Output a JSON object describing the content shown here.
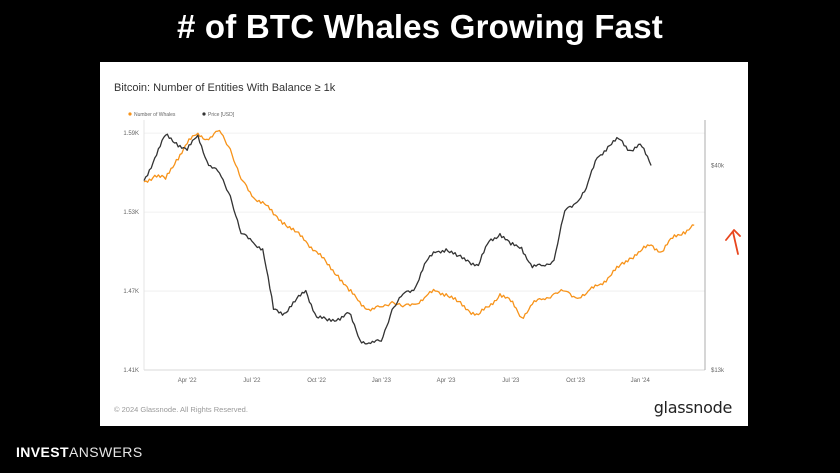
{
  "slide": {
    "title": "# of BTC Whales Growing Fast",
    "footer_brand_part1": "INVEST",
    "footer_brand_part2": "ANSWERS"
  },
  "card": {
    "copyright": "© 2024 Glassnode. All Rights Reserved.",
    "logo_text": "glassnode"
  },
  "colors": {
    "whales": "#f7931a",
    "price": "#333333",
    "annotation_arrow": "#e8461e",
    "background": "#000000"
  },
  "chart_data": {
    "type": "line",
    "title": "Bitcoin: Number of Entities With Balance ≥ 1k",
    "legend": [
      "Number of Whales",
      "Price [USD]"
    ],
    "legend_position": "top-left",
    "x_tick_labels": [
      "Apr '22",
      "Jul '22",
      "Oct '22",
      "Jan '23",
      "Apr '23",
      "Jul '23",
      "Oct '23",
      "Jan '24"
    ],
    "y_left_tick_labels": [
      "1.41K",
      "1.47K",
      "1.53K",
      "1.59K"
    ],
    "y_left_ticks": [
      1410,
      1470,
      1530,
      1590
    ],
    "y_left_range": [
      1410,
      1600
    ],
    "y_right_tick_labels": [
      "$13k",
      "$40k"
    ],
    "y_right_ticks": [
      13000,
      40000
    ],
    "y_right_range": [
      13000,
      46000
    ],
    "right_axis_scale": "linear",
    "grid": true,
    "x_range_months": [
      0,
      26
    ],
    "x_tick_months": [
      2,
      5,
      8,
      11,
      14,
      17,
      20,
      23
    ],
    "series": [
      {
        "name": "Number of Whales",
        "axis": "left",
        "points": [
          [
            0,
            1553
          ],
          [
            0.5,
            1558
          ],
          [
            1,
            1555
          ],
          [
            1.5,
            1570
          ],
          [
            2,
            1582
          ],
          [
            2.5,
            1590
          ],
          [
            3,
            1585
          ],
          [
            3.5,
            1592
          ],
          [
            4,
            1578
          ],
          [
            4.5,
            1555
          ],
          [
            5,
            1542
          ],
          [
            5.5,
            1538
          ],
          [
            6,
            1528
          ],
          [
            6.5,
            1522
          ],
          [
            7,
            1515
          ],
          [
            7.5,
            1508
          ],
          [
            8,
            1500
          ],
          [
            8.5,
            1490
          ],
          [
            9,
            1482
          ],
          [
            9.5,
            1470
          ],
          [
            10,
            1462
          ],
          [
            10.5,
            1455
          ],
          [
            11,
            1458
          ],
          [
            11.5,
            1462
          ],
          [
            12,
            1458
          ],
          [
            12.5,
            1460
          ],
          [
            13,
            1465
          ],
          [
            13.5,
            1470
          ],
          [
            14,
            1468
          ],
          [
            14.5,
            1462
          ],
          [
            15,
            1456
          ],
          [
            15.5,
            1452
          ],
          [
            16,
            1458
          ],
          [
            16.5,
            1468
          ],
          [
            17,
            1462
          ],
          [
            17.5,
            1450
          ],
          [
            18,
            1460
          ],
          [
            18.5,
            1464
          ],
          [
            19,
            1468
          ],
          [
            19.5,
            1470
          ],
          [
            20,
            1465
          ],
          [
            20.5,
            1468
          ],
          [
            21,
            1474
          ],
          [
            21.5,
            1480
          ],
          [
            22,
            1488
          ],
          [
            22.5,
            1495
          ],
          [
            23,
            1500
          ],
          [
            23.5,
            1505
          ],
          [
            24,
            1500
          ],
          [
            24.5,
            1510
          ],
          [
            25,
            1515
          ],
          [
            25.5,
            1520
          ]
        ]
      },
      {
        "name": "Price [USD]",
        "axis": "right",
        "points": [
          [
            0,
            38000
          ],
          [
            0.5,
            41000
          ],
          [
            1,
            44000
          ],
          [
            1.5,
            43000
          ],
          [
            2,
            42000
          ],
          [
            2.5,
            44000
          ],
          [
            3,
            40000
          ],
          [
            3.5,
            39000
          ],
          [
            4,
            36000
          ],
          [
            4.5,
            31000
          ],
          [
            5,
            30000
          ],
          [
            5.5,
            29000
          ],
          [
            6,
            21000
          ],
          [
            6.5,
            20500
          ],
          [
            7,
            22000
          ],
          [
            7.5,
            23500
          ],
          [
            8,
            20000
          ],
          [
            8.5,
            19500
          ],
          [
            9,
            19800
          ],
          [
            9.5,
            20500
          ],
          [
            10,
            17000
          ],
          [
            10.5,
            16500
          ],
          [
            11,
            16800
          ],
          [
            11.5,
            21000
          ],
          [
            12,
            23000
          ],
          [
            12.5,
            23500
          ],
          [
            13,
            27000
          ],
          [
            13.5,
            28500
          ],
          [
            14,
            29000
          ],
          [
            14.5,
            28000
          ],
          [
            15,
            27500
          ],
          [
            15.5,
            26800
          ],
          [
            16,
            30000
          ],
          [
            16.5,
            31000
          ],
          [
            17,
            29500
          ],
          [
            17.5,
            29200
          ],
          [
            18,
            26500
          ],
          [
            18.5,
            26800
          ],
          [
            19,
            27500
          ],
          [
            19.5,
            34000
          ],
          [
            20,
            35000
          ],
          [
            20.5,
            37000
          ],
          [
            21,
            41000
          ],
          [
            21.5,
            42500
          ],
          [
            22,
            43500
          ],
          [
            22.5,
            42000
          ],
          [
            23,
            42800
          ],
          [
            23.5,
            40000
          ]
        ]
      }
    ]
  }
}
